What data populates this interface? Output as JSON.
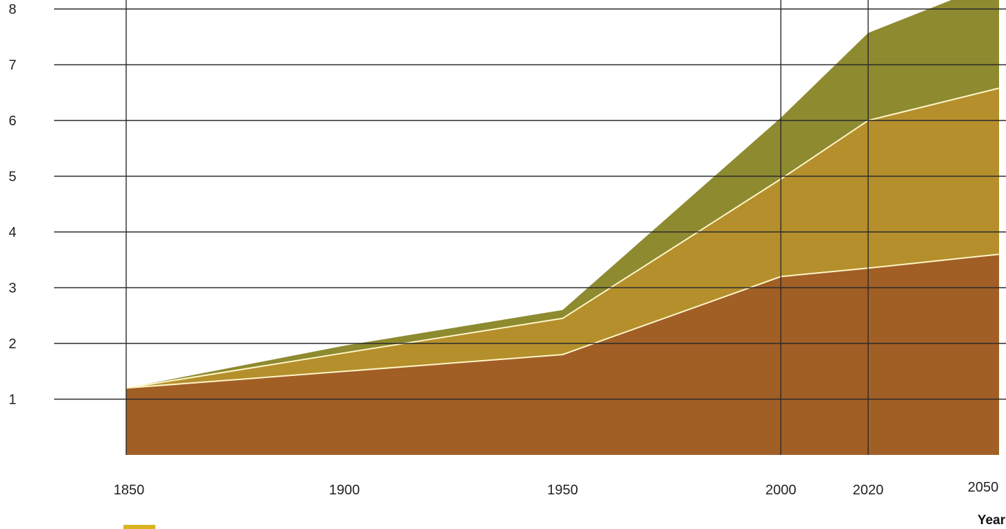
{
  "chart_data": {
    "type": "area",
    "stacked": true,
    "x": [
      1850,
      1900,
      1950,
      2000,
      2020,
      2050
    ],
    "x_tick_labels": [
      "1850",
      "1900",
      "1950",
      "2000",
      "2020",
      "2050"
    ],
    "y_tick_labels": [
      "1",
      "2",
      "3",
      "4",
      "5",
      "6",
      "7",
      "8"
    ],
    "y_ticks": [
      1,
      2,
      3,
      4,
      5,
      6,
      7,
      8
    ],
    "xlabel": "Year",
    "ylabel": "",
    "xlim": [
      1850,
      2050
    ],
    "ylim": [
      0,
      8
    ],
    "grid": true,
    "legend_position": "bottom-left",
    "series": [
      {
        "values": [
          1.2,
          1.5,
          1.8,
          3.2,
          3.35,
          3.6
        ],
        "color": "#a15f26"
      },
      {
        "values": [
          1.2,
          1.83,
          2.45,
          4.95,
          6.0,
          6.58
        ],
        "color": "#b58f2c"
      },
      {
        "values": [
          1.2,
          1.96,
          2.6,
          6.05,
          7.57,
          8.5
        ],
        "color": "#8e8a30"
      }
    ],
    "vertical_gridlines_at": [
      1850,
      2000,
      2020
    ]
  }
}
